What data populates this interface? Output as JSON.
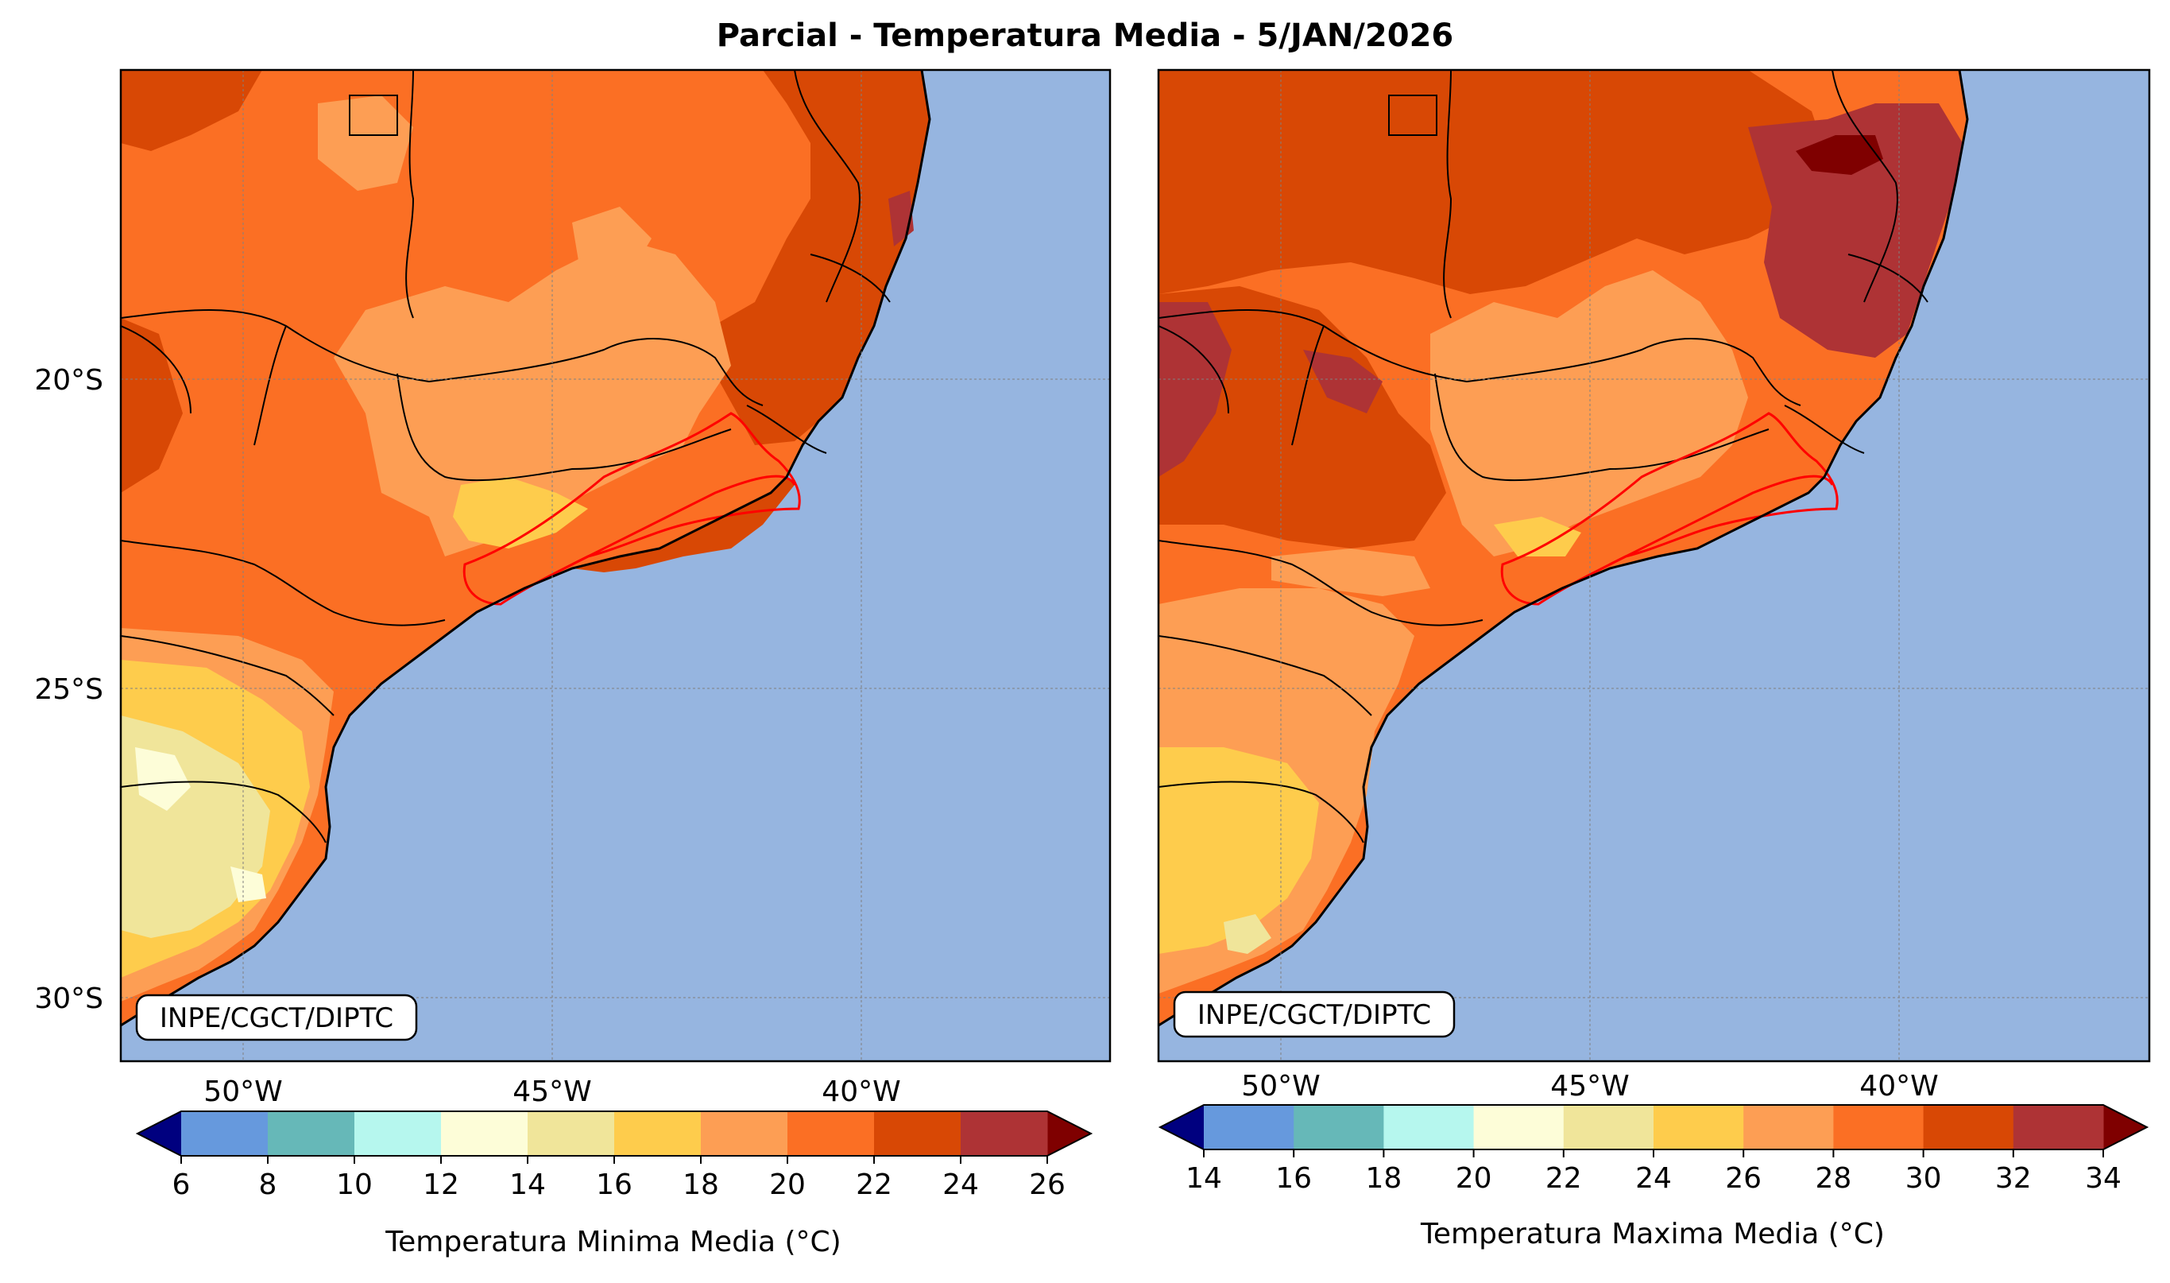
{
  "title": "Parcial - Temperatura Media - 5/JAN/2026",
  "credit": "INPE/CGCT/DIPTC",
  "lat_labels": [
    "20°S",
    "25°S",
    "30°S"
  ],
  "lon_labels": [
    "50°W",
    "45°W",
    "40°W"
  ],
  "colors": {
    "ocean": "#96b5e0",
    "border": "#000000",
    "highlight_border": "#ff0000",
    "grid": "#808080",
    "levels_under": "#00007f",
    "levels_over": "#7f0000",
    "fills": [
      "#6699dd",
      "#66b8b8",
      "#b6f7ee",
      "#fdfdd8",
      "#f0e59a",
      "#fecc4c",
      "#fd9e54",
      "#fb6f24",
      "#d84805",
      "#ae3335"
    ]
  },
  "left_map": {
    "colorbar_label": "Temperatura Minima Media ($^\\circ$C)",
    "colorbar_label_text": "Temperatura Minima Media (°C)",
    "ticks": [
      "6",
      "8",
      "10",
      "12",
      "14",
      "16",
      "18",
      "20",
      "22",
      "24",
      "26"
    ]
  },
  "right_map": {
    "colorbar_label_text": "Temperatura Maxima Media (°C)",
    "ticks": [
      "14",
      "16",
      "18",
      "20",
      "22",
      "24",
      "26",
      "28",
      "30",
      "32",
      "34"
    ]
  }
}
